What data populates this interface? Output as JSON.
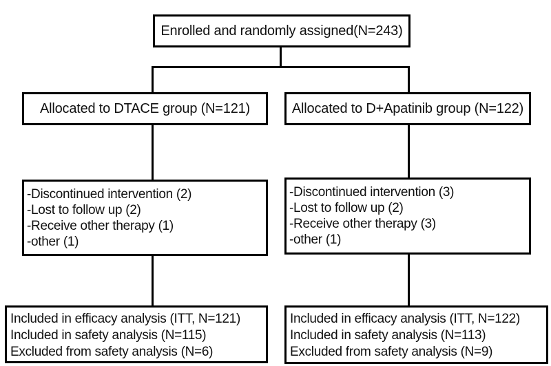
{
  "diagram": {
    "type": "consort-flowchart",
    "background_color": "#ffffff",
    "border_color": "#000000",
    "text_color": "#111111",
    "nodes": {
      "enrollment": {
        "text": "Enrolled and randomly assigned(N=243)"
      },
      "alloc_left": {
        "text": "Allocated to DTACE group (N=121)"
      },
      "alloc_right": {
        "text": "Allocated to D+Apatinib group (N=122)"
      },
      "dropout_left": {
        "lines": [
          "-Discontinued intervention (2)",
          "-Lost to follow up (2)",
          "-Receive other therapy (1)",
          "-other (1)"
        ]
      },
      "dropout_right": {
        "lines": [
          "-Discontinued intervention (3)",
          "-Lost to follow up (2)",
          "-Receive other therapy (3)",
          "-other (1)"
        ]
      },
      "analysis_left": {
        "lines": [
          "Included in efficacy analysis (ITT, N=121)",
          "Included in safety analysis (N=115)",
          "Excluded from safety analysis (N=6)"
        ]
      },
      "analysis_right": {
        "lines": [
          "Included in efficacy analysis (ITT, N=122)",
          "Included in safety analysis (N=113)",
          "Excluded from safety analysis (N=9)"
        ]
      }
    }
  }
}
